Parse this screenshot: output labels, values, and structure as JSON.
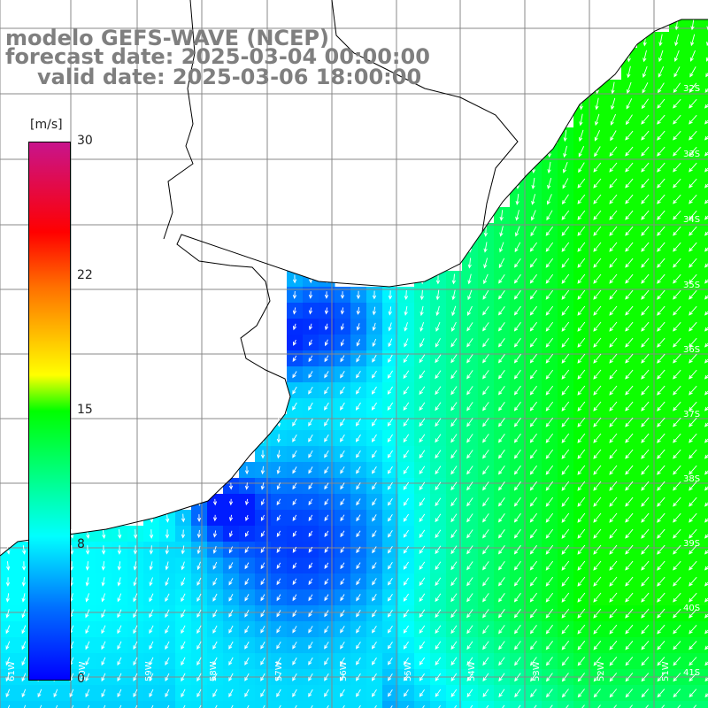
{
  "title": {
    "line1": "modelo GEFS-WAVE (NCEP)",
    "line2": "forecast date: 2025-03-04 00:00:00",
    "line3": "valid date: 2025-03-06 18:00:00"
  },
  "colorbar": {
    "unit": "[m/s]",
    "min": 0,
    "max": 30,
    "ticks": [
      "30",
      "22",
      "15",
      "8",
      "0"
    ],
    "tick_values": [
      30,
      22,
      15,
      8,
      0
    ]
  },
  "grid": {
    "lat_labels": [
      "32S",
      "33S",
      "34S",
      "35S",
      "36S",
      "37S",
      "38S",
      "39S",
      "40S",
      "41S"
    ],
    "lon_labels": [
      "61W",
      "60W",
      "59W",
      "58W",
      "57W",
      "56W",
      "55W",
      "54W",
      "53W",
      "52W",
      "51W"
    ]
  },
  "colors": {
    "land": "#ffffff",
    "grid": "#888888",
    "coast": "#000000",
    "arrow": "#ffffff",
    "title": "#7f7f7f"
  }
}
